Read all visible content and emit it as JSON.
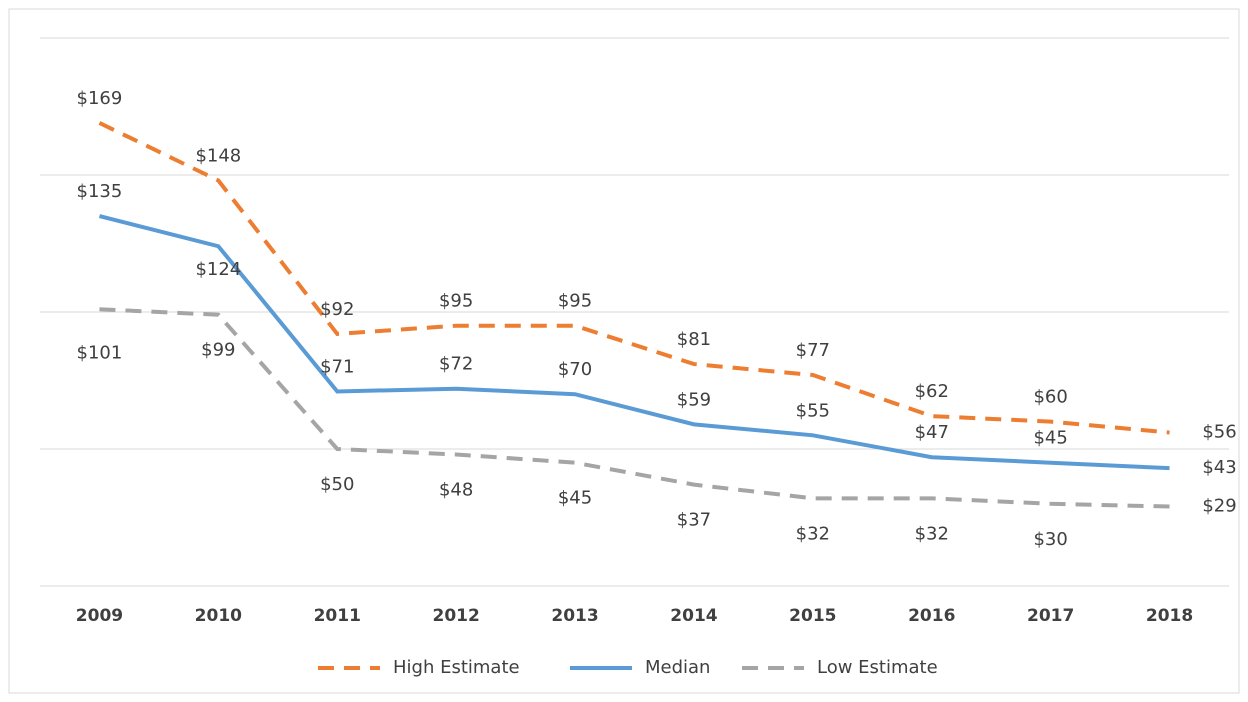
{
  "chart_data": {
    "type": "line",
    "categories": [
      "2009",
      "2010",
      "2011",
      "2012",
      "2013",
      "2014",
      "2015",
      "2016",
      "2017",
      "2018"
    ],
    "series": [
      {
        "name": "High Estimate",
        "color": "#ed7d31",
        "line_style": "dashed",
        "values": [
          169,
          148,
          92,
          95,
          95,
          81,
          77,
          62,
          60,
          56
        ],
        "value_labels": [
          "$169",
          "$148",
          "$92",
          "$95",
          "$95",
          "$81",
          "$77",
          "$62",
          "$60",
          "$56"
        ]
      },
      {
        "name": "Median",
        "color": "#5b9bd5",
        "line_style": "solid",
        "values": [
          135,
          124,
          71,
          72,
          70,
          59,
          55,
          47,
          45,
          43
        ],
        "value_labels": [
          "$135",
          "$124",
          "$71",
          "$72",
          "$70",
          "$59",
          "$55",
          "$47",
          "$45",
          "$43"
        ]
      },
      {
        "name": "Low Estimate",
        "color": "#a5a5a5",
        "line_style": "dashed",
        "values": [
          101,
          99,
          50,
          48,
          45,
          37,
          32,
          32,
          30,
          29
        ],
        "value_labels": [
          "$101",
          "$99",
          "$50",
          "$48",
          "$45",
          "$37",
          "$32",
          "$32",
          "$30",
          "$29"
        ]
      }
    ],
    "ylim": [
      0,
      200
    ],
    "yticks": [
      0,
      50,
      100,
      150,
      200
    ],
    "grid": true,
    "legend": "bottom"
  }
}
